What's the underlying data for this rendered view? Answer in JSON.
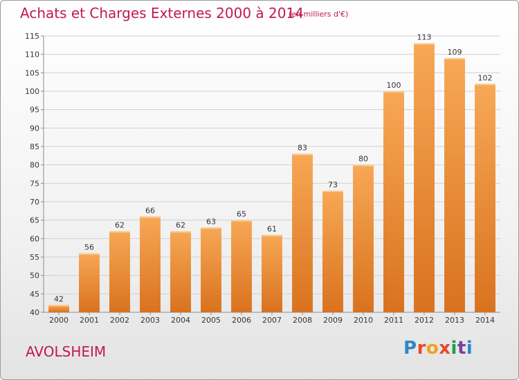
{
  "header": {
    "title": "Achats et Charges Externes 2000 à 2014",
    "subtitle": "(en milliers d'€)"
  },
  "footer": {
    "place": "AVOLSHEIM",
    "logo_text": "Proxiti"
  },
  "colors": {
    "title": "#c2184d",
    "bar_top": "#f7a855",
    "bar_bottom": "#d9721f",
    "grid": "#d0d0d0",
    "axis": "#8c8c8c"
  },
  "chart_data": {
    "type": "bar",
    "categories": [
      "2000",
      "2001",
      "2002",
      "2003",
      "2004",
      "2005",
      "2006",
      "2007",
      "2008",
      "2009",
      "2010",
      "2011",
      "2012",
      "2013",
      "2014"
    ],
    "values": [
      42,
      56,
      62,
      66,
      62,
      63,
      65,
      61,
      83,
      73,
      80,
      100,
      113,
      109,
      102
    ],
    "data_labels": [
      "42",
      "56",
      "62",
      "66",
      "62",
      "63",
      "65",
      "61",
      "83",
      "73",
      "80",
      "100",
      "113",
      "109",
      "102"
    ],
    "ylim": [
      40,
      115
    ],
    "yticks": [
      "40",
      "45",
      "50",
      "55",
      "60",
      "65",
      "70",
      "75",
      "80",
      "85",
      "90",
      "95",
      "100",
      "105",
      "110",
      "115"
    ],
    "grid": true,
    "legend": "none"
  }
}
